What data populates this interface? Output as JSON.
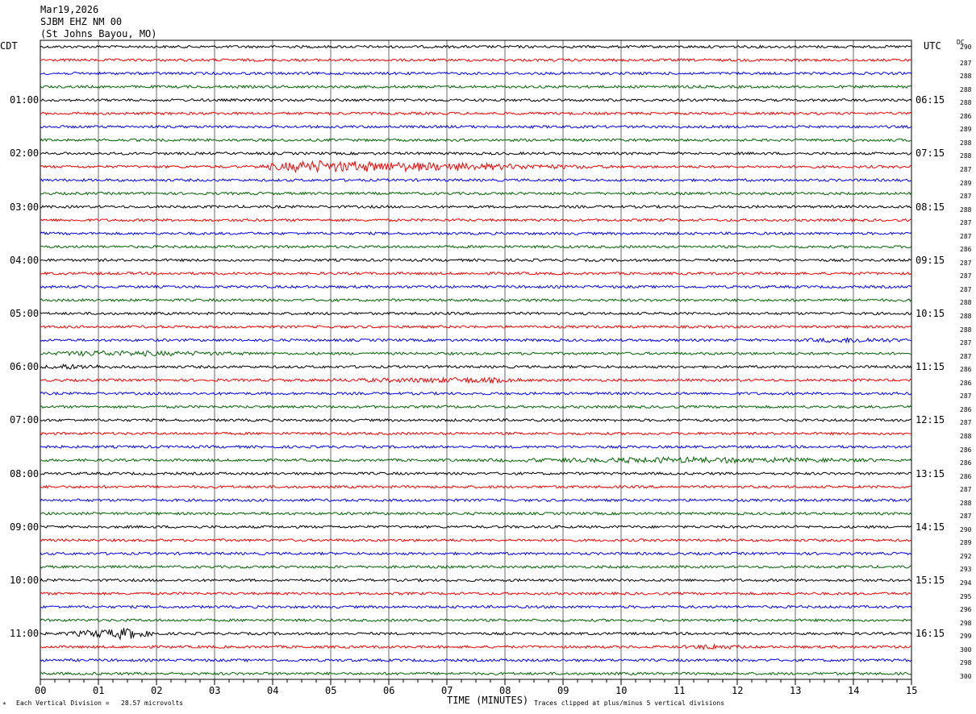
{
  "header": {
    "date": "Mar19,2026",
    "station": "SJBM EHZ NM 00",
    "location": "(St Johns Bayou, MO)"
  },
  "left_timezone": "CDT",
  "right_timezone": "UTC",
  "dc_label": "DC",
  "footer": {
    "scale_note": "Each Vertical Division =   28.57 microvolts",
    "xlabel": "TIME (MINUTES)",
    "clip_note": "Traces clipped at plus/minus 5 vertical divisions"
  },
  "colors": {
    "trace_cycle": [
      "#000000",
      "#ff0000",
      "#0000ff",
      "#006400"
    ],
    "grid": "#000000"
  },
  "chart_data": {
    "type": "line",
    "title": "SJBM EHZ NM 00",
    "xlabel": "TIME (MINUTES)",
    "ylabel": "",
    "xlim": [
      0,
      15
    ],
    "x_ticks": [
      "00",
      "01",
      "02",
      "03",
      "04",
      "05",
      "06",
      "07",
      "08",
      "09",
      "10",
      "11",
      "12",
      "13",
      "14",
      "15"
    ],
    "traces_per_hour": 4,
    "minutes_per_trace": 15,
    "left_hour_labels": [
      "01:00",
      "02:00",
      "03:00",
      "04:00",
      "05:00",
      "06:00",
      "07:00",
      "08:00",
      "09:00",
      "10:00",
      "11:00"
    ],
    "right_hour_labels": [
      "06:15",
      "07:15",
      "08:15",
      "09:15",
      "10:15",
      "11:15",
      "12:15",
      "13:15",
      "14:15",
      "15:15",
      "16:15"
    ],
    "dc_offsets": [
      290,
      287,
      288,
      288,
      288,
      286,
      289,
      288,
      288,
      287,
      289,
      287,
      288,
      287,
      287,
      286,
      287,
      287,
      287,
      288,
      288,
      288,
      287,
      287,
      286,
      286,
      287,
      286,
      287,
      288,
      286,
      286,
      286,
      287,
      288,
      287,
      290,
      289,
      292,
      293,
      294,
      295,
      296,
      298,
      299,
      300,
      298,
      300
    ],
    "events": [
      {
        "trace": 9,
        "start_min": 3.6,
        "end_min": 10.0,
        "peak_min": 4.6,
        "level": "strong"
      },
      {
        "trace": 24,
        "start_min": 0.0,
        "end_min": 1.5,
        "peak_min": 0.4,
        "level": "moderate"
      },
      {
        "trace": 25,
        "start_min": 4.5,
        "end_min": 8.5,
        "peak_min": 7.5,
        "level": "moderate"
      },
      {
        "trace": 31,
        "start_min": 7.0,
        "end_min": 15.0,
        "peak_min": 11.0,
        "level": "moderate"
      },
      {
        "trace": 22,
        "start_min": 13.0,
        "end_min": 15.0,
        "peak_min": 14.0,
        "level": "moderate"
      },
      {
        "trace": 23,
        "start_min": 0.0,
        "end_min": 4.0,
        "peak_min": 1.0,
        "level": "moderate"
      },
      {
        "trace": 44,
        "start_min": 0.3,
        "end_min": 2.0,
        "peak_min": 1.5,
        "level": "strong"
      },
      {
        "trace": 45,
        "start_min": 11.0,
        "end_min": 12.2,
        "peak_min": 11.6,
        "level": "moderate"
      }
    ]
  }
}
